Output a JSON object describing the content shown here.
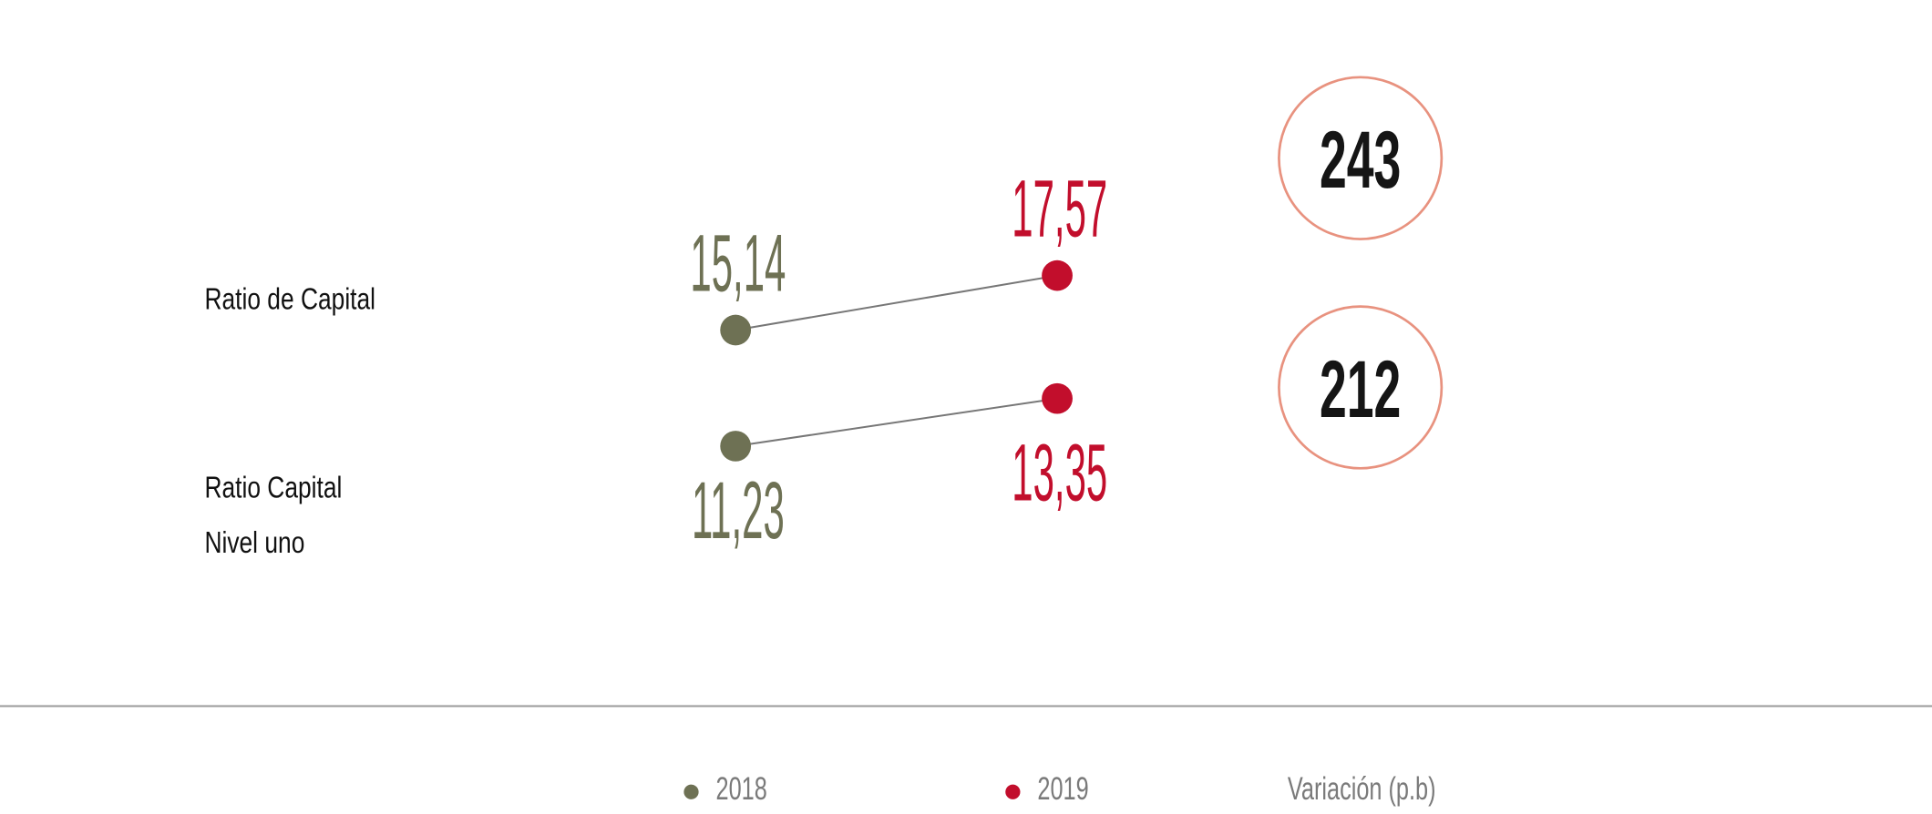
{
  "chart_data": {
    "type": "dumbbell",
    "categories": [
      "Ratio de Capital",
      "Ratio Capital\nNivel uno"
    ],
    "series": [
      {
        "name": "2018",
        "color": "#6e7154",
        "values": [
          15.14,
          11.23
        ],
        "value_labels": [
          "15,14",
          "11,23"
        ]
      },
      {
        "name": "2019",
        "color": "#c20e2c",
        "values": [
          17.57,
          13.35
        ],
        "value_labels": [
          "17,57",
          "13,35"
        ]
      }
    ],
    "variation": {
      "name": "Variación (p.b)",
      "values": [
        243,
        212
      ]
    }
  }
}
